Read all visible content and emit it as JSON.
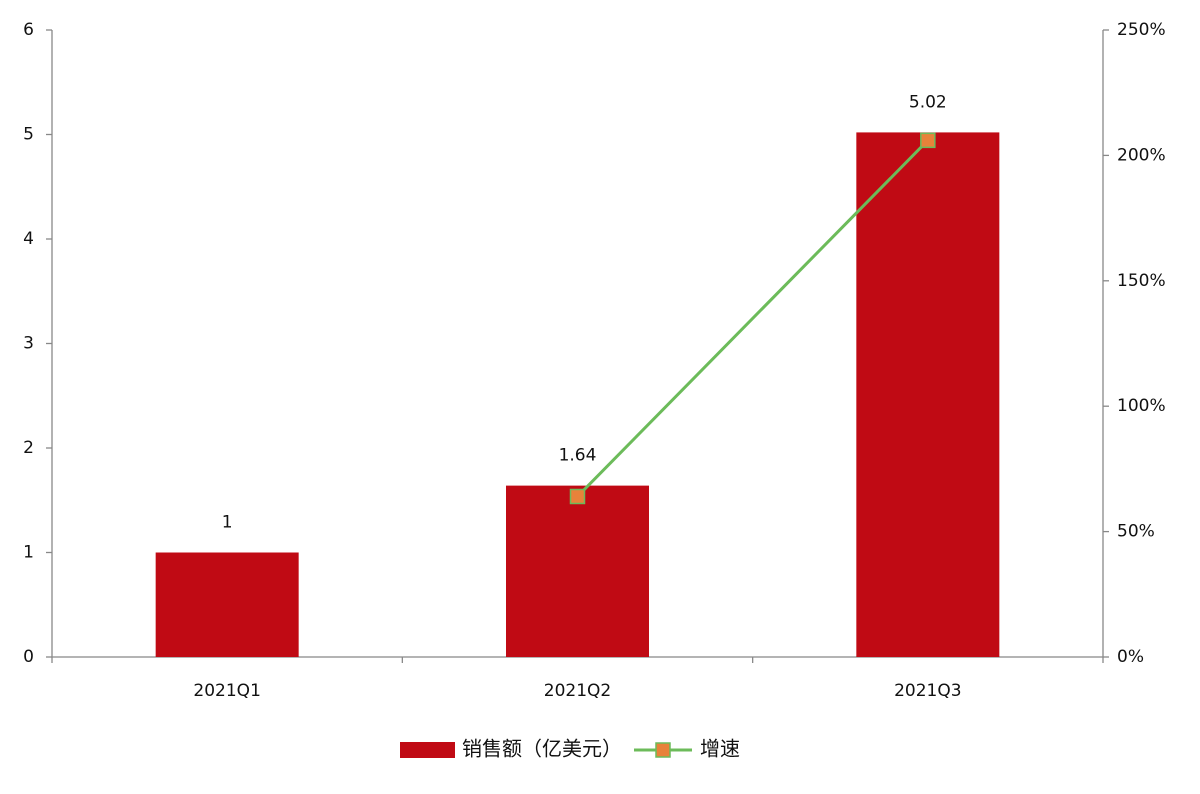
{
  "chart_data": {
    "type": "bar",
    "categories": [
      "2021Q1",
      "2021Q2",
      "2021Q3"
    ],
    "series": [
      {
        "name": "销售额（亿美元）",
        "type": "bar",
        "color": "#c00a14",
        "values": [
          1,
          1.64,
          5.02
        ]
      },
      {
        "name": "增速",
        "type": "line",
        "axis": "y2",
        "color": "#6cbb5a",
        "marker_color": "#e8823a",
        "values": [
          null,
          64,
          206
        ]
      }
    ],
    "ylim": [
      0,
      6
    ],
    "yticks": [
      0,
      1,
      2,
      3,
      4,
      5,
      6
    ],
    "y2lim": [
      0,
      250
    ],
    "y2ticks": [
      {
        "value": 0,
        "label": "0%"
      },
      {
        "value": 50,
        "label": "50%"
      },
      {
        "value": 100,
        "label": "100%"
      },
      {
        "value": 150,
        "label": "150%"
      },
      {
        "value": 200,
        "label": "200%"
      },
      {
        "value": 250,
        "label": "250%"
      }
    ],
    "grid": false,
    "legend": "bottom"
  }
}
